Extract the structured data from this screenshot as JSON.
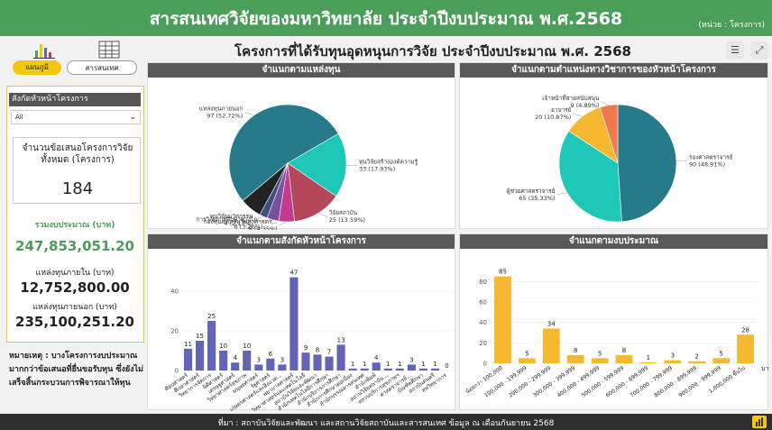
{
  "header": {
    "title": "สารสนเทศวิจัยของมหาวิทยาลัย ประจำปีงบประมาณ พ.ศ.2568",
    "unit": "(หน่วย : โครงการ)"
  },
  "tabs": [
    {
      "label": "แผนภูมิ",
      "active": true
    },
    {
      "label": "สารสนเทศ",
      "active": false
    }
  ],
  "sidebar": {
    "filter_title": "สังกัดหัวหน้าโครงการ",
    "filter_value": "All",
    "card_label": "จำนวนข้อเสนอโครงการวิจัยทั้งหมด (โครงการ)",
    "card_value": "184",
    "budget_label": "รวมงบประมาณ (บาท)",
    "budget_value": "247,853,051.20",
    "internal_label": "แหล่งทุนภายใน (บาท)",
    "internal_value": "12,752,800.00",
    "external_label": "แหล่งทุนภายนอก (บาท)",
    "external_value": "235,100,251.20",
    "note": "หมายเหตุ : บางโครงการงบประมาณมากกว่าข้อเสนอที่ยื่นขอรับทุน ซึ่งยังไม่เสร็จสิ้นกระบวนการพิจารณาให้ทุน"
  },
  "main_title": "โครงการที่ได้รับทุนอุดหนุนการวิจัย ประจำปีงบประมาณ พ.ศ. 2568",
  "footer": "ที่มา : สถาบันวิจัยและพัฒนา และสถานวิจัยสถาบันและสารสนเทศ ข้อมูล ณ เดือนกันยายน 2568",
  "colors": {
    "green": "#4b9e5a",
    "yellow": "#f2c811",
    "teal": "#1fc7b6",
    "darkteal": "#277a8a",
    "maroon": "#b5475a",
    "orange": "#f7a832",
    "purple": "#6264b5",
    "budget": "#f5b830"
  },
  "chart_data": [
    {
      "type": "pie",
      "title": "จำแนกตามแหล่งทุน",
      "slices": [
        {
          "label": "แหล่งทุนภายนอก",
          "value": 97,
          "pct": "52.72%",
          "color": "#277a8a"
        },
        {
          "label": "ทุนวิจัยสร้างองค์ความรู้",
          "value": 33,
          "pct": "17.93%",
          "color": "#1fc7b6"
        },
        {
          "label": "วิจัยสถาบัน",
          "value": 25,
          "pct": "13.59%",
          "color": "#b5475a"
        },
        {
          "label": "กองทุนส่งเสริมวิทยาศาสตร์...",
          "value": 8,
          "pct": "4.35%",
          "color": "#c33a8e"
        },
        {
          "label": "การวิจัยการศึกษาทางไก...",
          "value": 6,
          "pct": "3.26%",
          "color": "#7a4f9b"
        },
        {
          "label": "ทุนวิจัยนวัตกรรม",
          "value": 4,
          "pct": "2.17%",
          "color": "#3c4f80"
        },
        {
          "label": "",
          "value": 11,
          "pct": "",
          "color": "#222222"
        }
      ]
    },
    {
      "type": "pie",
      "title": "จำแนกตามตำแหน่งทางวิชาการของหัวหน้าโครงการ",
      "slices": [
        {
          "label": "รองศาสตราจารย์",
          "value": 90,
          "pct": "48.91%",
          "color": "#277a8a"
        },
        {
          "label": "ผู้ช่วยศาสตราจารย์",
          "value": 65,
          "pct": "35.33%",
          "color": "#1fc7b6"
        },
        {
          "label": "อาจารย์",
          "value": 20,
          "pct": "10.87%",
          "color": "#f5b830"
        },
        {
          "label": "เจ้าหน้าที่สายสนับสนุน",
          "value": 9,
          "pct": "4.89%",
          "color": "#f07a50"
        }
      ]
    },
    {
      "type": "bar",
      "title": "จำแนกตามสังกัดหัวหน้าโครงการ",
      "ylim": [
        0,
        50
      ],
      "yticks": [
        0,
        20,
        40
      ],
      "color": "#6264b5",
      "categories": [
        "ศิลปศาสตร์",
        "ศึกษาศาสตร์",
        "วิทยาการจัดการ",
        "นิติศาสตร์",
        "เศรษฐศาสตร์",
        "วิทยาศาสตร์สุขภาพ",
        "มนุษยศาสตร์",
        "รัฐศาสตร์",
        "เกษตรศาสตร์และสิ่งแวด...",
        "พยาบาลศาสตร์",
        "วิทยาศาสตร์และเทคโนโลยี",
        "สถาบันวิจัยและพัฒนา",
        "สำนักเทคโนโลยีการศึกษา",
        "สำนักบริการการศึกษา",
        "สำนักการศึกษาต่อเนื่อง",
        "สำนักบรรณสารสนเทศ",
        "สำนักพิมพ์",
        "สถานวิจัยสถาบัน...",
        "สถานบริการสุขภาพฯ",
        "ศาสตราจารย์...",
        "บัณฑิตศึกษา",
        "สถาบันดนตรี",
        "สหวิทยาการ"
      ],
      "values": [
        11,
        15,
        25,
        10,
        4,
        10,
        3,
        6,
        3,
        47,
        9,
        8,
        7,
        13,
        1,
        1,
        4,
        1,
        1,
        3,
        1,
        1,
        0
      ]
    },
    {
      "type": "bar",
      "title": "จำแนกตามงบประมาณ",
      "ylim": [
        0,
        90
      ],
      "yticks": [
        0,
        20,
        40,
        60,
        80
      ],
      "color": "#f5b830",
      "xunit": "บาท",
      "categories": [
        "น้อยกว่า 100,000",
        "100,000 - 199,999",
        "200,000 - 299,999",
        "300,000 - 399,999",
        "400,000 - 499,999",
        "500,000 - 599,999",
        "600,000 - 699,999",
        "700,000 - 799,999",
        "800,000 - 899,999",
        "900,000 - 999,999",
        "1,000,000 ขึ้นไป"
      ],
      "values": [
        85,
        5,
        34,
        8,
        5,
        8,
        1,
        3,
        2,
        5,
        28
      ]
    }
  ]
}
